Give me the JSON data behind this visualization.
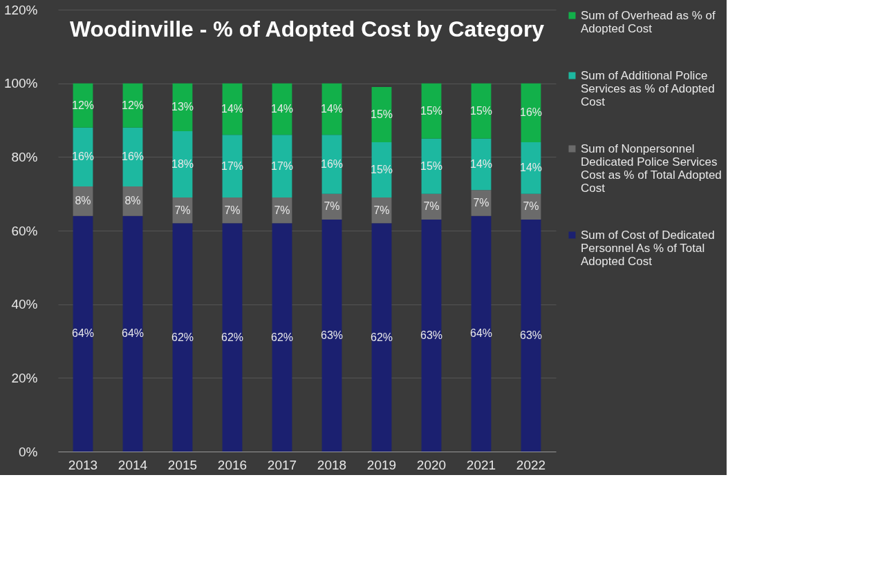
{
  "chart_data": {
    "type": "bar",
    "title": "Woodinville - % of Adopted Cost by Category",
    "categories": [
      "2013",
      "2014",
      "2015",
      "2016",
      "2017",
      "2018",
      "2019",
      "2020",
      "2021",
      "2022"
    ],
    "stacked": true,
    "series": [
      {
        "name": "Sum of Cost of Dedicated Personnel As % of Total Adopted Cost",
        "color": "#1b2070",
        "values": [
          64,
          64,
          62,
          62,
          62,
          63,
          62,
          63,
          64,
          63
        ],
        "value_labels": [
          "64%",
          "64%",
          "62%",
          "62%",
          "62%",
          "63%",
          "62%",
          "63%",
          "64%",
          "63%"
        ]
      },
      {
        "name": "Sum of Nonpersonnel Dedicated Police Services Cost as % of Total Adopted Cost",
        "color": "#6b6b6b",
        "values": [
          8,
          8,
          7,
          7,
          7,
          7,
          7,
          7,
          7,
          7
        ],
        "value_labels": [
          "8%",
          "8%",
          "7%",
          "7%",
          "7%",
          "7%",
          "7%",
          "7%",
          "7%",
          "7%"
        ]
      },
      {
        "name": "Sum of Additional Police Services as % of Adopted Cost",
        "color": "#1db8a0",
        "values": [
          16,
          16,
          18,
          17,
          17,
          16,
          15,
          15,
          14,
          14
        ],
        "value_labels": [
          "16%",
          "16%",
          "18%",
          "17%",
          "17%",
          "16%",
          "15%",
          "15%",
          "14%",
          "14%"
        ]
      },
      {
        "name": "Sum of Overhead as % of Adopted Cost",
        "color": "#12b04a",
        "values": [
          12,
          12,
          13,
          14,
          14,
          14,
          15,
          15,
          15,
          16
        ],
        "value_labels": [
          "12%",
          "12%",
          "13%",
          "14%",
          "14%",
          "14%",
          "15%",
          "15%",
          "15%",
          "16%"
        ]
      }
    ],
    "ylim": [
      0,
      120
    ],
    "yticks": [
      {
        "value": 0,
        "label": "0%"
      },
      {
        "value": 20,
        "label": "20%"
      },
      {
        "value": 40,
        "label": "40%"
      },
      {
        "value": 60,
        "label": "60%"
      },
      {
        "value": 80,
        "label": "80%"
      },
      {
        "value": 100,
        "label": "100%"
      },
      {
        "value": 120,
        "label": "120%"
      }
    ],
    "grid": "y",
    "legend": "right"
  }
}
